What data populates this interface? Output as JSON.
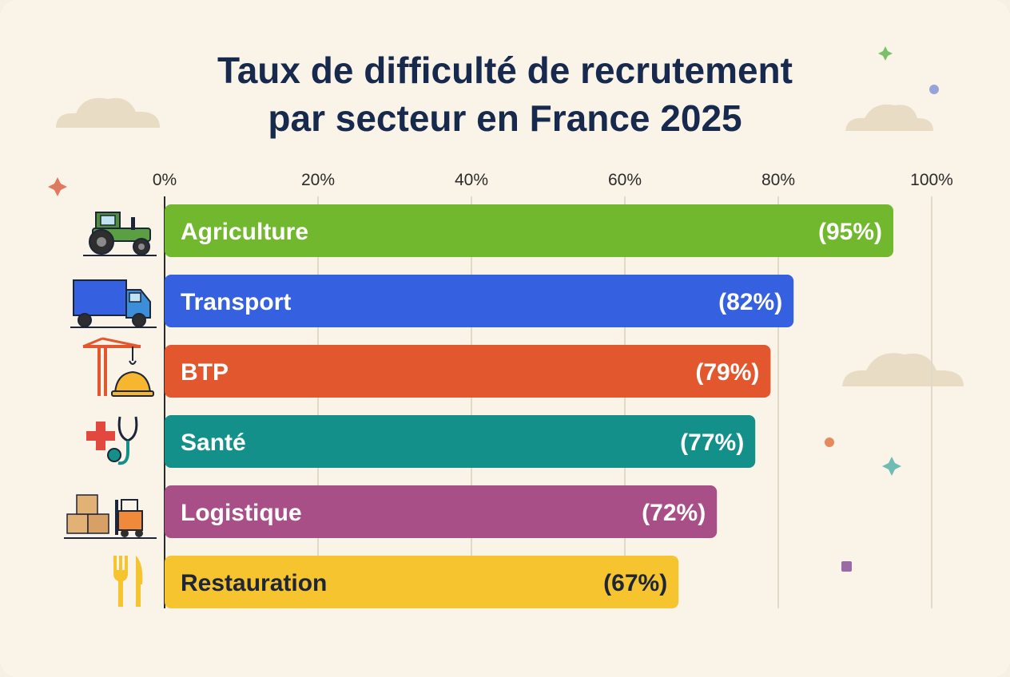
{
  "title_lines": [
    "Taux de difficulté de recrutement",
    "par secteur en France 2025"
  ],
  "chart_data": {
    "type": "bar",
    "orientation": "horizontal",
    "title": "Taux de difficulté de recrutement par secteur en France 2025",
    "categories": [
      "Agriculture",
      "Transport",
      "BTP",
      "Santé",
      "Logistique",
      "Restauration"
    ],
    "values": [
      95,
      82,
      79,
      77,
      72,
      67
    ],
    "value_labels": [
      "(95%)",
      "(82%)",
      "(79%)",
      "(77%)",
      "(72%)",
      "(67%)"
    ],
    "x_ticks": [
      0,
      20,
      40,
      60,
      80,
      100
    ],
    "x_tick_labels": [
      "0%",
      "20%",
      "40%",
      "60%",
      "80%",
      "100%"
    ],
    "xlim": [
      0,
      100
    ],
    "xlabel": "",
    "ylabel": "",
    "grid": true,
    "legend": "none",
    "tick_position": "top",
    "colors": [
      "#72b82e",
      "#3560e0",
      "#e2572e",
      "#14908a",
      "#a84f88",
      "#f6c42e"
    ],
    "label_colors": [
      "#ffffff",
      "#ffffff",
      "#ffffff",
      "#ffffff",
      "#ffffff",
      "#1d2538"
    ],
    "icons": [
      "tractor-icon",
      "truck-icon",
      "crane-helmet-icon",
      "medical-cross-stethoscope-icon",
      "boxes-forklift-icon",
      "fork-knife-icon"
    ]
  }
}
